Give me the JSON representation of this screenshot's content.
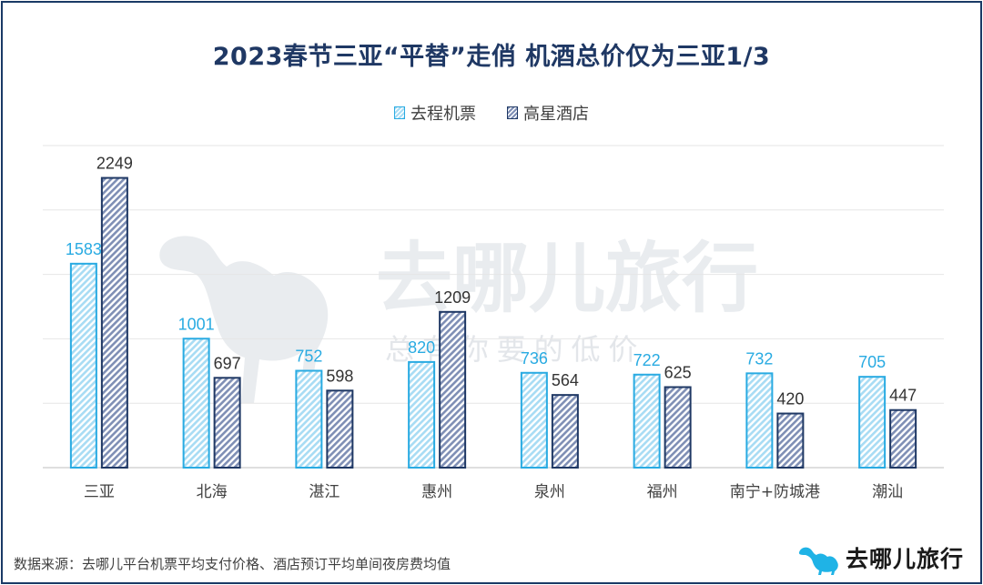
{
  "title": "2023春节三亚“平替”走俏 机酒总价仅为三亚1/3",
  "legend": {
    "flight": "去程机票",
    "hotel": "高星酒店"
  },
  "colors": {
    "flight_stroke": "#29abe2",
    "flight_fill": "#a8dcf4",
    "flight_label": "#29abe2",
    "hotel_stroke": "#1f3864",
    "hotel_fill": "#7f8fb5",
    "hotel_label": "#333333",
    "title": "#1f3864",
    "frame": "#1a3a66",
    "watermark": "#e9ecef"
  },
  "watermark": {
    "brand": "去哪儿旅行",
    "slogan": "总 有 你 要 的 低 价"
  },
  "footer": {
    "source": "数据来源：去哪儿平台机票平均支付价格、酒店预订平均单间夜房费均值",
    "brand": "去哪儿旅行"
  },
  "chart_data": {
    "type": "bar",
    "title": "2023春节三亚“平替”走俏 机酒总价仅为三亚1/3",
    "categories": [
      "三亚",
      "北海",
      "湛江",
      "惠州",
      "泉州",
      "福州",
      "南宁+防城港",
      "潮汕"
    ],
    "series": [
      {
        "name": "去程机票",
        "values": [
          1583,
          1001,
          752,
          820,
          736,
          722,
          732,
          705
        ]
      },
      {
        "name": "高星酒店",
        "values": [
          2249,
          697,
          598,
          1209,
          564,
          625,
          420,
          447
        ]
      }
    ],
    "ylim": [
      0,
      2500
    ],
    "grid": true,
    "legend_position": "top-center",
    "xlabel": "",
    "ylabel": ""
  }
}
